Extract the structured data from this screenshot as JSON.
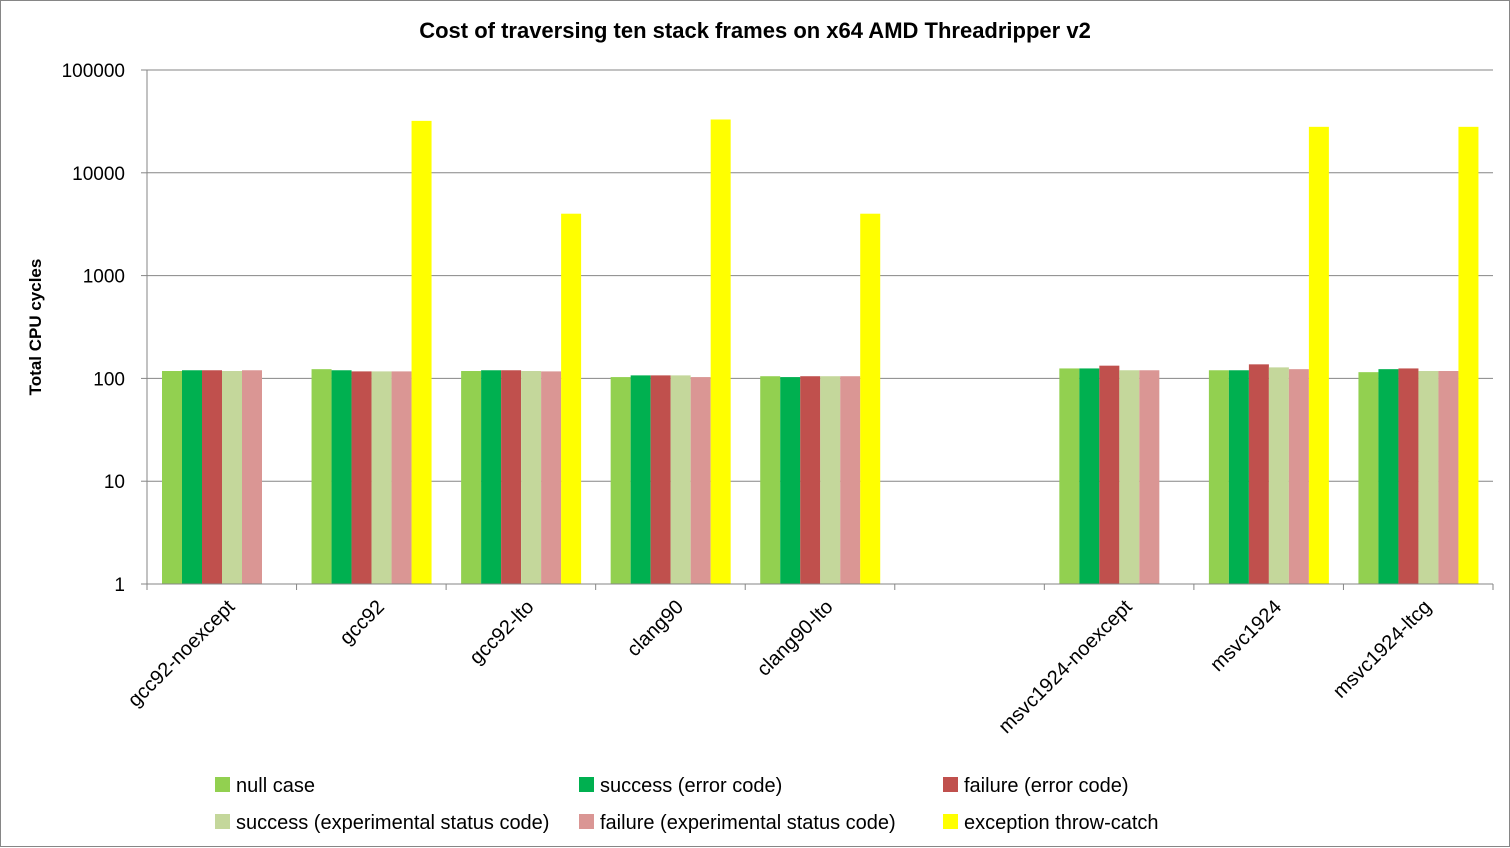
{
  "chart_data": {
    "type": "bar",
    "title": "Cost of traversing ten stack frames on x64 AMD Threadripper v2",
    "ylabel": "Total CPU cycles",
    "xlabel": "",
    "yscale": "log",
    "ylim": [
      1,
      100000
    ],
    "yticks": [
      "1",
      "10",
      "100",
      "1000",
      "10000",
      "100000"
    ],
    "grid": true,
    "legend_position": "bottom",
    "categories": [
      "gcc92-noexcept",
      "gcc92",
      "gcc92-lto",
      "clang90",
      "clang90-lto",
      "",
      "msvc1924-noexcept",
      "msvc1924",
      "msvc1924-ltcg"
    ],
    "series": [
      {
        "name": "null case",
        "color": "#92d050",
        "values": [
          118,
          123,
          118,
          103,
          105,
          null,
          125,
          120,
          115
        ]
      },
      {
        "name": "success (error code)",
        "color": "#00b050",
        "values": [
          120,
          120,
          120,
          107,
          103,
          null,
          125,
          120,
          123
        ]
      },
      {
        "name": "failure (error code)",
        "color": "#c0504d",
        "values": [
          120,
          117,
          120,
          107,
          105,
          null,
          133,
          137,
          125
        ]
      },
      {
        "name": "success (experimental status code)",
        "color": "#c4d79b",
        "values": [
          118,
          117,
          118,
          107,
          105,
          null,
          120,
          128,
          118
        ]
      },
      {
        "name": "failure (experimental status code)",
        "color": "#da9694",
        "values": [
          120,
          117,
          117,
          103,
          105,
          null,
          120,
          123,
          118
        ]
      },
      {
        "name": "exception throw-catch",
        "color": "#ffff00",
        "values": [
          null,
          32000,
          4000,
          33000,
          4000,
          null,
          null,
          28000,
          28000
        ]
      }
    ]
  }
}
